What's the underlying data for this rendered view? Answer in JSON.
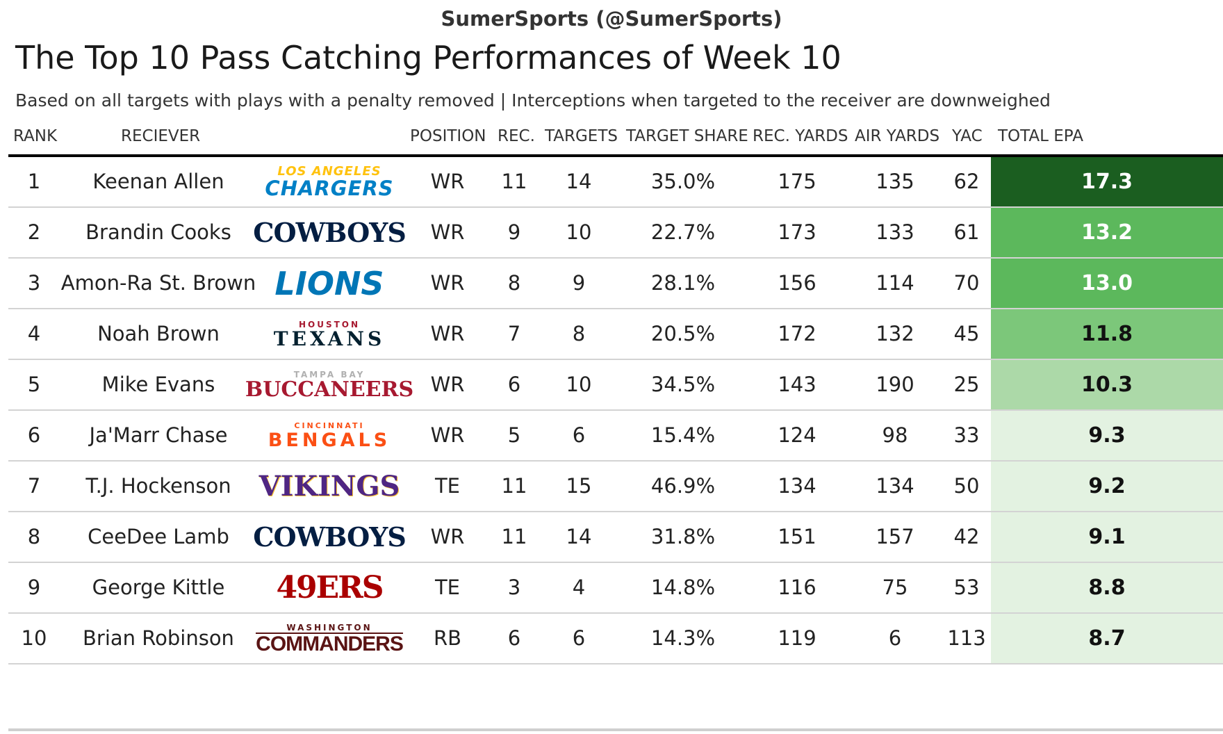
{
  "attribution": "SumerSports (@SumerSports)",
  "title": "The Top 10 Pass Catching Performances of Week 10",
  "subtitle": "Based on all targets with plays with a penalty removed | Interceptions when targeted to the receiver are downweighed",
  "chart_data": {
    "type": "table",
    "columns": [
      "RANK",
      "RECIEVER",
      "POSITION",
      "REC.",
      "TARGETS",
      "TARGET SHARE",
      "REC. YARDS",
      "AIR YARDS",
      "YAC",
      "TOTAL EPA"
    ],
    "rows": [
      {
        "rank": "1",
        "receiver": "Keenan Allen",
        "team": "chargers",
        "logo_top": "LOS ANGELES",
        "logo_main": "CHARGERS",
        "position": "WR",
        "rec": "11",
        "targets": "14",
        "target_share": "35.0%",
        "rec_yards": "175",
        "air_yards": "135",
        "yac": "62",
        "total_epa": "17.3",
        "epa_value": 17.3
      },
      {
        "rank": "2",
        "receiver": "Brandin Cooks",
        "team": "cowboys",
        "logo_top": "",
        "logo_main": "COWBOYS",
        "position": "WR",
        "rec": "9",
        "targets": "10",
        "target_share": "22.7%",
        "rec_yards": "173",
        "air_yards": "133",
        "yac": "61",
        "total_epa": "13.2",
        "epa_value": 13.2
      },
      {
        "rank": "3",
        "receiver": "Amon-Ra St. Brown",
        "team": "lions",
        "logo_top": "",
        "logo_main": "LIONS",
        "position": "WR",
        "rec": "8",
        "targets": "9",
        "target_share": "28.1%",
        "rec_yards": "156",
        "air_yards": "114",
        "yac": "70",
        "total_epa": "13.0",
        "epa_value": 13.0
      },
      {
        "rank": "4",
        "receiver": "Noah Brown",
        "team": "texans",
        "logo_top": "HOUSTON",
        "logo_main": "TEXANS",
        "position": "WR",
        "rec": "7",
        "targets": "8",
        "target_share": "20.5%",
        "rec_yards": "172",
        "air_yards": "132",
        "yac": "45",
        "total_epa": "11.8",
        "epa_value": 11.8
      },
      {
        "rank": "5",
        "receiver": "Mike Evans",
        "team": "buccaneers",
        "logo_top": "TAMPA BAY",
        "logo_main": "BUCCANEERS",
        "position": "WR",
        "rec": "6",
        "targets": "10",
        "target_share": "34.5%",
        "rec_yards": "143",
        "air_yards": "190",
        "yac": "25",
        "total_epa": "10.3",
        "epa_value": 10.3
      },
      {
        "rank": "6",
        "receiver": "Ja'Marr Chase",
        "team": "bengals",
        "logo_top": "CINCINNATI",
        "logo_main": "BENGALS",
        "position": "WR",
        "rec": "5",
        "targets": "6",
        "target_share": "15.4%",
        "rec_yards": "124",
        "air_yards": "98",
        "yac": "33",
        "total_epa": "9.3",
        "epa_value": 9.3
      },
      {
        "rank": "7",
        "receiver": "T.J. Hockenson",
        "team": "vikings",
        "logo_top": "",
        "logo_main": "VIKINGS",
        "position": "TE",
        "rec": "11",
        "targets": "15",
        "target_share": "46.9%",
        "rec_yards": "134",
        "air_yards": "134",
        "yac": "50",
        "total_epa": "9.2",
        "epa_value": 9.2
      },
      {
        "rank": "8",
        "receiver": "CeeDee Lamb",
        "team": "cowboys",
        "logo_top": "",
        "logo_main": "COWBOYS",
        "position": "WR",
        "rec": "11",
        "targets": "14",
        "target_share": "31.8%",
        "rec_yards": "151",
        "air_yards": "157",
        "yac": "42",
        "total_epa": "9.1",
        "epa_value": 9.1
      },
      {
        "rank": "9",
        "receiver": "George Kittle",
        "team": "49ers",
        "logo_top": "",
        "logo_main": "49ERS",
        "position": "TE",
        "rec": "3",
        "targets": "4",
        "target_share": "14.8%",
        "rec_yards": "116",
        "air_yards": "75",
        "yac": "53",
        "total_epa": "8.8",
        "epa_value": 8.8
      },
      {
        "rank": "10",
        "receiver": "Brian Robinson",
        "team": "commanders",
        "logo_top": "WASHINGTON",
        "logo_main": "COMMANDERS",
        "position": "RB",
        "rec": "6",
        "targets": "6",
        "target_share": "14.3%",
        "rec_yards": "119",
        "air_yards": "6",
        "yac": "113",
        "total_epa": "8.7",
        "epa_value": 8.7
      }
    ]
  },
  "colors": {
    "epa_high": "#1b5e20",
    "epa_mid": "#5cb85c",
    "epa_low": "#e3f2e1",
    "chargers": "#0080c6",
    "chargers_accent": "#ffc20e",
    "cowboys": "#041e42",
    "lions": "#0076b6",
    "texans": "#03202f",
    "texans_accent": "#a71930",
    "buccaneers": "#a71930",
    "bengals": "#fb4f14",
    "vikings": "#4f2683",
    "vikings_accent": "#ffc62f",
    "49ers": "#aa0000",
    "commanders": "#5a1414"
  }
}
